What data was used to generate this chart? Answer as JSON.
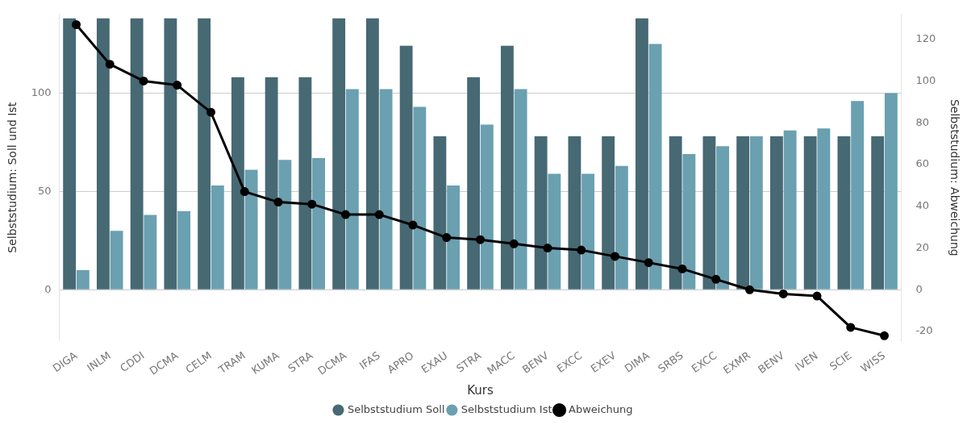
{
  "chart_data": {
    "type": "bar",
    "xlabel": "Kurs",
    "ylabel": "Selbststudium: Soll und Ist",
    "y2label": "Selbststudium: Abweichung",
    "categories": [
      "DIGA",
      "INLM",
      "CDDI",
      "DCMA",
      "CELM",
      "TRAM",
      "KUMA",
      "STRA",
      "DCMA",
      "IFAS",
      "APRO",
      "EXAU",
      "STRA",
      "MACC",
      "BENV",
      "EXCC",
      "EXEV",
      "DIMA",
      "SRBS",
      "EXCC",
      "EXMR",
      "BENV",
      "IVEN",
      "SCIE",
      "WISS"
    ],
    "series": [
      {
        "name": "Selbststudium Soll",
        "color": "#466974",
        "values": [
          138,
          138,
          138,
          138,
          138,
          108,
          108,
          108,
          138,
          138,
          124,
          78,
          108,
          124,
          78,
          78,
          78,
          138,
          78,
          78,
          78,
          78,
          78,
          78,
          78
        ]
      },
      {
        "name": "Selbststudium Ist",
        "color": "#6aa0b0",
        "values": [
          10,
          30,
          38,
          40,
          53,
          61,
          66,
          67,
          102,
          102,
          93,
          53,
          84,
          102,
          59,
          59,
          63,
          125,
          69,
          73,
          78,
          81,
          82,
          96,
          100
        ]
      },
      {
        "name": "Abweichung",
        "type": "line",
        "axis": "y2",
        "color": "#000000",
        "values": [
          127,
          108,
          100,
          98,
          85,
          47,
          42,
          41,
          36,
          36,
          31,
          25,
          24,
          22,
          20,
          19,
          16,
          13,
          10,
          5,
          0,
          -2,
          -3,
          -18,
          -22
        ]
      }
    ],
    "ylim": [
      -26,
      140
    ],
    "yticks": [
      0,
      50,
      100
    ],
    "y2lim": [
      -24.5,
      131.9
    ],
    "y2ticks": [
      -20,
      0,
      20,
      40,
      60,
      80,
      100,
      120
    ],
    "grid": "y",
    "legend": "bottom",
    "marker": "circle",
    "line_style": "solid"
  }
}
